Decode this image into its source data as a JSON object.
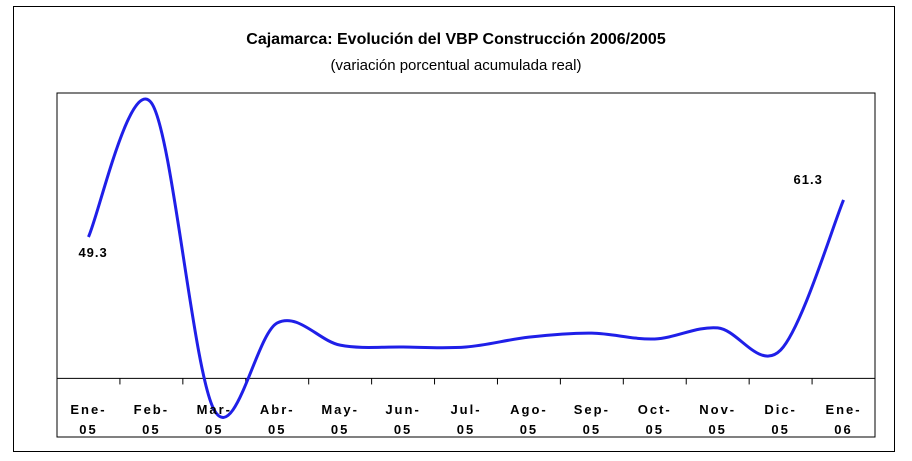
{
  "chart_data": {
    "type": "line",
    "title": "Cajamarca: Evolución del VBP Construcción 2006/2005",
    "subtitle": "(variación porcentual acumulada real)",
    "categories": [
      "Ene-\n05",
      "Feb-\n05",
      "Mar-\n05",
      "Abr-\n05",
      "May-\n05",
      "Jun-\n05",
      "Jul-\n05",
      "Ago-\n05",
      "Sep-\n05",
      "Oct-\n05",
      "Nov-\n05",
      "Dic-\n05",
      "Ene-\n06"
    ],
    "series": [
      {
        "color": "#1f1fe8",
        "values": [
          49.3,
          92.8,
          -6.9,
          21.4,
          14.2,
          13.6,
          13.6,
          16.8,
          18.1,
          16.2,
          19.8,
          12.6,
          61.3
        ],
        "value_labels": [
          "49.3",
          null,
          null,
          null,
          null,
          null,
          null,
          null,
          null,
          null,
          null,
          null,
          "61.3"
        ]
      }
    ],
    "ylim": [
      -15.6,
      96
    ],
    "x_axis_crossing": 3.4
  }
}
